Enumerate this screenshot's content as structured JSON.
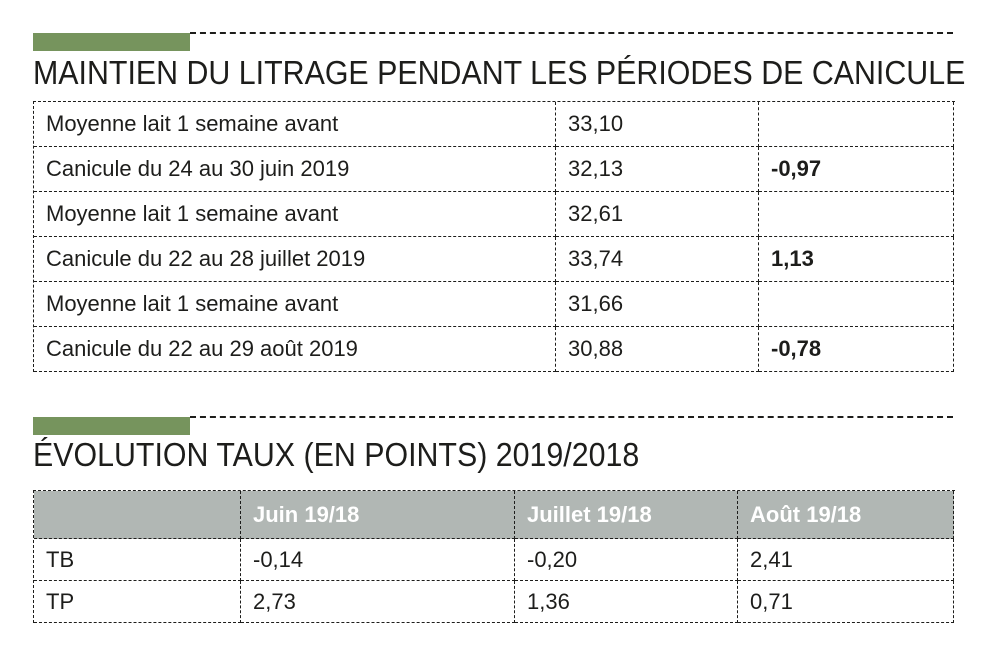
{
  "colors": {
    "accent_green": "#76945d",
    "header_gray": "#b1b7b4",
    "text_black": "#1d1d1b",
    "background": "#ffffff"
  },
  "section1": {
    "title": "MAINTIEN DU LITRAGE PENDANT LES PÉRIODES DE CANICULE",
    "table": {
      "rows": [
        {
          "label": "Moyenne lait 1 semaine avant",
          "value": "33,10",
          "delta": ""
        },
        {
          "label": "Canicule du 24 au 30 juin 2019",
          "value": "32,13",
          "delta": "-0,97"
        },
        {
          "label": "Moyenne lait 1 semaine avant",
          "value": "32,61",
          "delta": ""
        },
        {
          "label": "Canicule du 22 au 28 juillet 2019",
          "value": "33,74",
          "delta": "1,13"
        },
        {
          "label": "Moyenne lait 1 semaine avant",
          "value": "31,66",
          "delta": ""
        },
        {
          "label": "Canicule du 22 au 29 août 2019",
          "value": "30,88",
          "delta": "-0,78"
        }
      ]
    }
  },
  "section2": {
    "title": "ÉVOLUTION TAUX (EN POINTS) 2019/2018",
    "table": {
      "headers": [
        "",
        "Juin 19/18",
        "Juillet 19/18",
        "Août 19/18"
      ],
      "rows": [
        {
          "label": "TB",
          "values": [
            "-0,14",
            "-0,20",
            "2,41"
          ]
        },
        {
          "label": "TP",
          "values": [
            "2,73",
            "1,36",
            "0,71"
          ]
        }
      ]
    }
  }
}
